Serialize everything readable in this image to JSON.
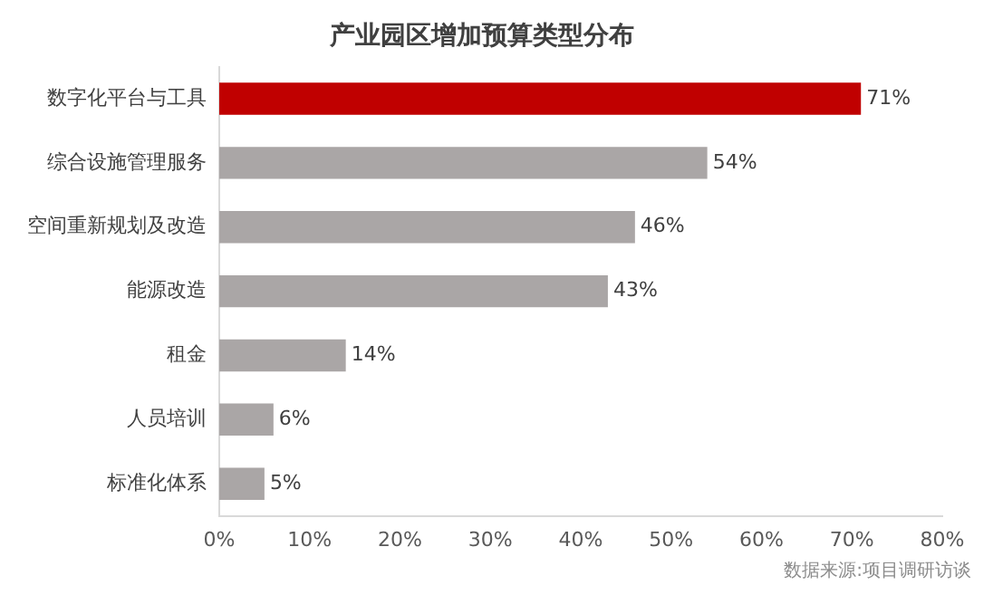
{
  "chart_data": {
    "type": "bar",
    "orientation": "horizontal",
    "title": "产业园区增加预算类型分布",
    "categories": [
      "数字化平台与工具",
      "综合设施管理服务",
      "空间重新规划及改造",
      "能源改造",
      "租金",
      "人员培训",
      "标准化体系"
    ],
    "values": [
      71,
      54,
      46,
      43,
      14,
      6,
      5
    ],
    "colors": [
      "#c00000",
      "#aaa6a6",
      "#aaa6a6",
      "#aaa6a6",
      "#aaa6a6",
      "#aaa6a6",
      "#aaa6a6"
    ],
    "value_labels": [
      "71%",
      "54%",
      "46%",
      "43%",
      "14%",
      "6%",
      "5%"
    ],
    "xlim": [
      0,
      80
    ],
    "xticks": [
      {
        "value": 0,
        "label": "0%"
      },
      {
        "value": 10,
        "label": "10%"
      },
      {
        "value": 20,
        "label": "20%"
      },
      {
        "value": 30,
        "label": "30%"
      },
      {
        "value": 40,
        "label": "40%"
      },
      {
        "value": 50,
        "label": "50%"
      },
      {
        "value": 60,
        "label": "60%"
      },
      {
        "value": 70,
        "label": "70%"
      },
      {
        "value": 80,
        "label": "80%"
      }
    ],
    "grid": false,
    "legend": false,
    "annotations": [
      "数据来源:项目调研访谈"
    ]
  }
}
